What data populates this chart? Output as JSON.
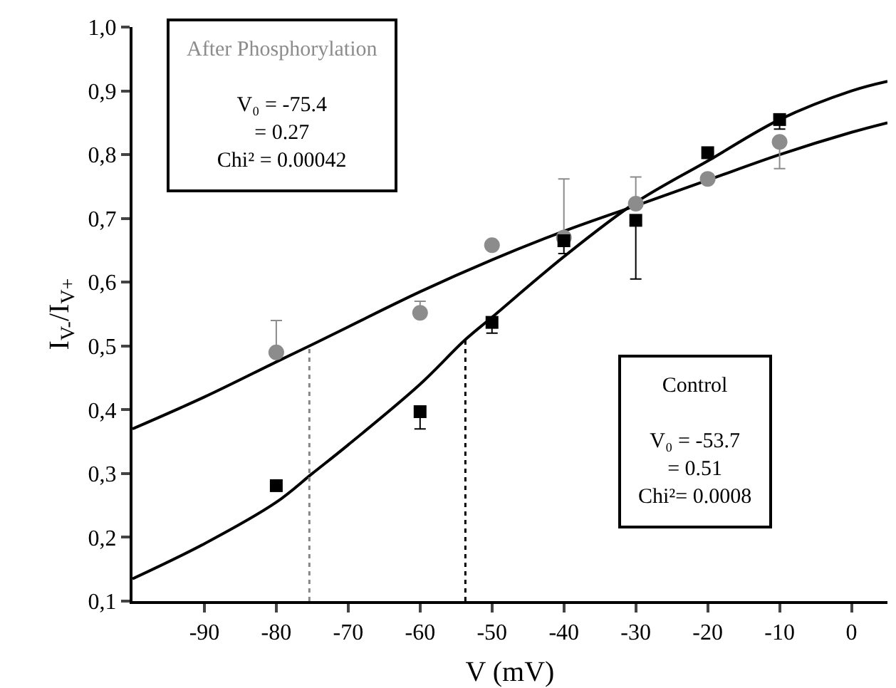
{
  "chart_data": {
    "type": "scatter",
    "xlabel": "V (mV)",
    "ylabel": "I$_{V-}$/I$_{V+}$",
    "xlim": [
      -100,
      5
    ],
    "xticks": [
      -90,
      -80,
      -70,
      -60,
      -50,
      -40,
      -30,
      -20,
      -10,
      0
    ],
    "ylim": [
      0.1,
      1.0
    ],
    "yticks": [
      {
        "value": 0.1,
        "label": "0,1"
      },
      {
        "value": 0.2,
        "label": "0,2"
      },
      {
        "value": 0.3,
        "label": "0,3"
      },
      {
        "value": 0.4,
        "label": "0,4"
      },
      {
        "value": 0.5,
        "label": "0,5"
      },
      {
        "value": 0.6,
        "label": "0,6"
      },
      {
        "value": 0.7,
        "label": "0,7"
      },
      {
        "value": 0.8,
        "label": "0,8"
      },
      {
        "value": 0.9,
        "label": "0,9"
      },
      {
        "value": 1.0,
        "label": "1,0"
      }
    ],
    "grid": false,
    "legend": false,
    "series": [
      {
        "type": "line",
        "color": "#000000",
        "marker": "none",
        "line_style": "solid",
        "x": [
          -100,
          -90,
          -80,
          -75,
          -70,
          -60,
          -53.7,
          -50,
          -40,
          -30,
          -20,
          -10,
          0,
          5
        ],
        "values": [
          0.135,
          0.19,
          0.255,
          0.3,
          0.345,
          0.44,
          0.51,
          0.545,
          0.64,
          0.725,
          0.79,
          0.855,
          0.9,
          0.915
        ]
      },
      {
        "type": "line",
        "color": "#000000",
        "marker": "none",
        "line_style": "solid",
        "x": [
          -100,
          -90,
          -80,
          -75.4,
          -70,
          -60,
          -50,
          -40,
          -30,
          -20,
          -10,
          0,
          5
        ],
        "values": [
          0.37,
          0.42,
          0.475,
          0.5,
          0.53,
          0.585,
          0.635,
          0.68,
          0.72,
          0.76,
          0.8,
          0.835,
          0.85
        ]
      },
      {
        "type": "line",
        "color": "#888888",
        "marker": "none",
        "line_style": "dotted",
        "x": [
          -75.4,
          -75.4
        ],
        "values": [
          0.1,
          0.5
        ]
      },
      {
        "type": "line",
        "color": "#000000",
        "marker": "none",
        "line_style": "dotted",
        "x": [
          -53.7,
          -53.7
        ],
        "values": [
          0.1,
          0.51
        ]
      },
      {
        "color": "#8c8c8c",
        "marker": "circle",
        "x": [
          -80,
          -60,
          -50,
          -40,
          -30,
          -20,
          -10
        ],
        "values": [
          0.49,
          0.552,
          0.658,
          0.67,
          0.723,
          0.762,
          0.82
        ],
        "errors": [
          [
            0.49,
            0.54
          ],
          [
            0.552,
            0.57
          ],
          null,
          [
            0.67,
            0.762
          ],
          [
            0.723,
            0.765
          ],
          null,
          [
            0.778,
            0.82
          ]
        ]
      },
      {
        "color": "#000000",
        "marker": "square",
        "x": [
          -80,
          -60,
          -50,
          -40,
          -30,
          -20,
          -10
        ],
        "values": [
          0.281,
          0.397,
          0.537,
          0.665,
          0.697,
          0.803,
          0.855
        ],
        "errors": [
          null,
          [
            0.37,
            0.397
          ],
          [
            0.52,
            0.537
          ],
          [
            0.645,
            0.665
          ],
          [
            0.605,
            0.697
          ],
          null,
          [
            0.84,
            0.855
          ]
        ]
      }
    ],
    "annotations": [
      "After Phosphorylation",
      "V₀ = -75.4",
      "= 0.27",
      "Chi² = 0.00042",
      "Control",
      "V₀ = -53.7",
      "= 0.51",
      "Chi²= 0.0008"
    ]
  }
}
